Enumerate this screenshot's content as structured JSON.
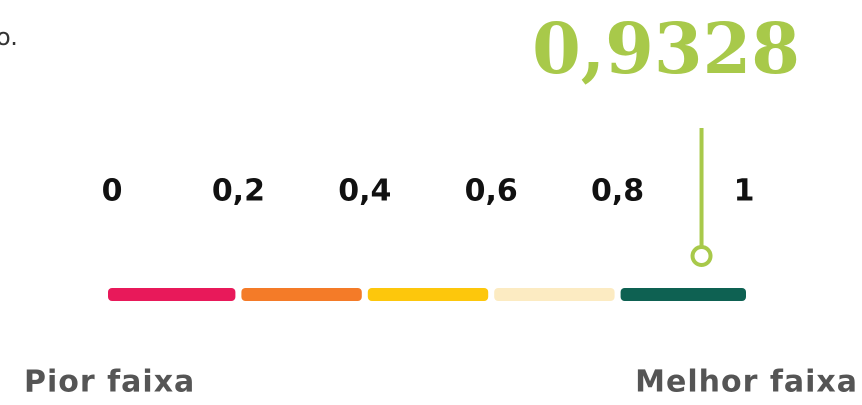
{
  "chart_data": {
    "type": "gauge",
    "annotation": "o.",
    "value": 0.9328,
    "value_label": "0,9328",
    "color": "#a8c94a",
    "xlim": [
      0,
      1
    ],
    "xticks": [
      0,
      {
        "value": 0.2,
        "label": "0,2"
      },
      {
        "value": 0.4,
        "label": "0,4"
      },
      {
        "value": 0.6,
        "label": "0,6"
      },
      {
        "value": 0.8,
        "label": "0,8"
      },
      1
    ],
    "bands": [
      {
        "from": 0,
        "to": 0.2,
        "color": "#e8195a"
      },
      {
        "from": 0.2,
        "to": 0.4,
        "color": "#f47b28"
      },
      {
        "from": 0.4,
        "to": 0.6,
        "color": "#fdc70c"
      },
      {
        "from": 0.6,
        "to": 0.8,
        "color": "#fcebc2"
      },
      {
        "from": 0.8,
        "to": 1,
        "color": "#0e6152"
      }
    ],
    "low_label": "Pior faixa",
    "high_label": "Melhor faixa"
  }
}
